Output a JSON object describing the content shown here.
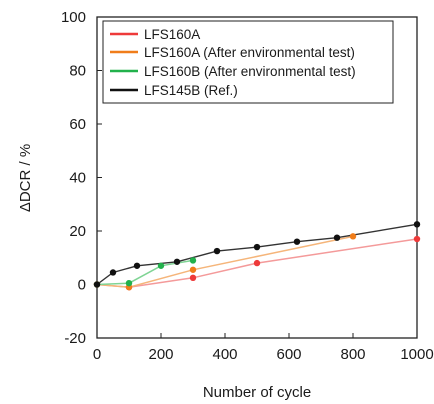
{
  "chart_data": {
    "type": "line",
    "title": "",
    "xlabel": "Number of cycle",
    "ylabel": "ΔDCR / %",
    "xlim": [
      0,
      1000
    ],
    "ylim": [
      -20,
      100
    ],
    "xticks": [
      0,
      200,
      400,
      600,
      800,
      1000
    ],
    "yticks": [
      -20,
      0,
      20,
      40,
      60,
      80,
      100
    ],
    "grid": false,
    "legend_position": "top-right",
    "series": [
      {
        "name": "LFS160A",
        "color": "#ee3a3a",
        "line_color": "#f49a9a",
        "x": [
          0,
          100,
          300,
          500,
          1000
        ],
        "y": [
          0,
          -1,
          2.5,
          8,
          17
        ]
      },
      {
        "name": "LFS160A (After environmental test)",
        "color": "#f07d1a",
        "line_color": "#f5b57a",
        "x": [
          0,
          100,
          300,
          800
        ],
        "y": [
          0,
          -1,
          5.5,
          18
        ]
      },
      {
        "name": "LFS160B (After environmental test)",
        "color": "#22b14c",
        "line_color": "#7fd494",
        "x": [
          0,
          100,
          200,
          300
        ],
        "y": [
          0,
          0.5,
          7,
          9
        ]
      },
      {
        "name": "LFS145B (Ref.)",
        "color": "#111111",
        "line_color": "#333333",
        "x": [
          0,
          50,
          125,
          250,
          375,
          500,
          625,
          750,
          1000
        ],
        "y": [
          0,
          4.5,
          7,
          8.5,
          12.5,
          14,
          16,
          17.5,
          22.5
        ]
      }
    ]
  }
}
